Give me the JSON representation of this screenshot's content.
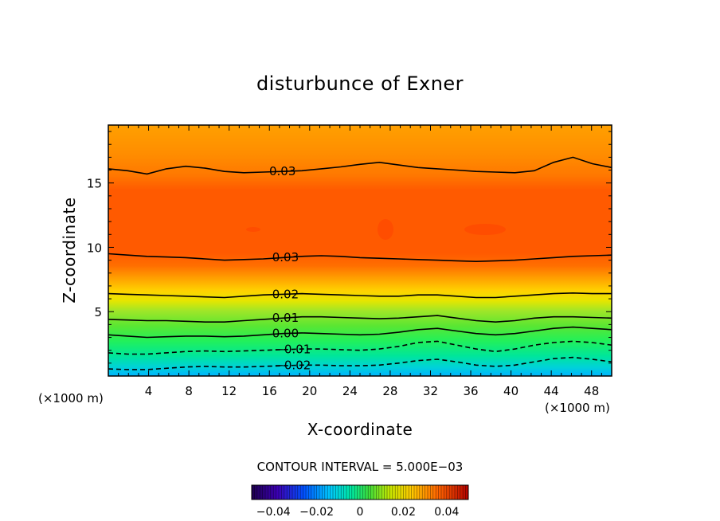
{
  "chart_data": {
    "type": "contour",
    "title": "disturbunce of Exner",
    "xlabel": "X-coordinate",
    "ylabel": "Z-coordinate",
    "x_unit_label": "(×1000 m)",
    "y_unit_label": "(×1000 m)",
    "xlim": [
      0,
      50
    ],
    "ylim": [
      0,
      19.5
    ],
    "x_ticks": [
      4,
      8,
      12,
      16,
      20,
      24,
      28,
      32,
      36,
      40,
      44,
      48
    ],
    "y_ticks": [
      5,
      10,
      15
    ],
    "x_tick_labels": [
      "4",
      "8",
      "12",
      "16",
      "20",
      "24",
      "28",
      "32",
      "36",
      "40",
      "44",
      "48"
    ],
    "y_tick_labels": [
      "5",
      "10",
      "15"
    ],
    "contour_interval_text": "CONTOUR INTERVAL = 5.000E−03",
    "contour_interval": 0.005,
    "colorbar": {
      "range": [
        -0.05,
        0.05
      ],
      "ticks": [
        -0.04,
        -0.02,
        0,
        0.02,
        0.04
      ],
      "tick_labels": [
        "−0.04",
        "−0.02",
        "0",
        "0.02",
        "0.04"
      ]
    },
    "contour_lines": [
      {
        "level": 0.03,
        "label": "0.03",
        "label_x": 17.3,
        "z": [
          16.1,
          15.95,
          15.7,
          16.1,
          16.3,
          16.15,
          15.9,
          15.8,
          15.85,
          15.9,
          15.95,
          16.1,
          16.25,
          16.45,
          16.6,
          16.4,
          16.2,
          16.1,
          16.0,
          15.9,
          15.85,
          15.8,
          15.95,
          16.6,
          17.0,
          16.5,
          16.2
        ]
      },
      {
        "level": 0.03,
        "label": "0.03",
        "label_x": 17.6,
        "z": [
          9.5,
          9.4,
          9.3,
          9.25,
          9.2,
          9.1,
          9.0,
          9.05,
          9.1,
          9.2,
          9.3,
          9.35,
          9.3,
          9.2,
          9.15,
          9.1,
          9.05,
          9.0,
          8.95,
          8.9,
          8.95,
          9.0,
          9.1,
          9.2,
          9.3,
          9.35,
          9.4
        ]
      },
      {
        "level": 0.02,
        "label": "0.02",
        "label_x": 17.6,
        "z": [
          6.4,
          6.35,
          6.3,
          6.25,
          6.2,
          6.15,
          6.1,
          6.2,
          6.3,
          6.35,
          6.4,
          6.35,
          6.3,
          6.25,
          6.2,
          6.2,
          6.3,
          6.3,
          6.2,
          6.1,
          6.1,
          6.2,
          6.3,
          6.4,
          6.45,
          6.4,
          6.4
        ]
      },
      {
        "level": 0.01,
        "label": "0.01",
        "label_x": 17.6,
        "z": [
          4.4,
          4.35,
          4.3,
          4.3,
          4.25,
          4.2,
          4.2,
          4.3,
          4.4,
          4.5,
          4.6,
          4.6,
          4.55,
          4.5,
          4.45,
          4.5,
          4.6,
          4.7,
          4.5,
          4.3,
          4.2,
          4.3,
          4.5,
          4.6,
          4.6,
          4.55,
          4.5
        ]
      },
      {
        "level": 0.0,
        "label": "0.00",
        "label_x": 17.6,
        "z": [
          3.2,
          3.1,
          3.0,
          3.05,
          3.1,
          3.1,
          3.05,
          3.1,
          3.2,
          3.3,
          3.35,
          3.3,
          3.25,
          3.2,
          3.25,
          3.4,
          3.6,
          3.7,
          3.5,
          3.3,
          3.2,
          3.3,
          3.5,
          3.7,
          3.8,
          3.7,
          3.6
        ]
      },
      {
        "level": -0.01,
        "label": "−0.01",
        "label_x": 18.3,
        "z": [
          1.8,
          1.7,
          1.7,
          1.8,
          1.9,
          1.95,
          1.9,
          1.95,
          2.0,
          2.05,
          2.1,
          2.1,
          2.05,
          2.0,
          2.1,
          2.3,
          2.6,
          2.7,
          2.4,
          2.1,
          1.9,
          2.1,
          2.4,
          2.6,
          2.7,
          2.6,
          2.4
        ]
      },
      {
        "level": -0.02,
        "label": "−0.02",
        "label_x": 18.3,
        "z": [
          0.55,
          0.5,
          0.5,
          0.6,
          0.7,
          0.75,
          0.7,
          0.7,
          0.75,
          0.8,
          0.85,
          0.85,
          0.8,
          0.8,
          0.85,
          1.0,
          1.2,
          1.3,
          1.1,
          0.85,
          0.75,
          0.85,
          1.1,
          1.35,
          1.45,
          1.3,
          1.1
        ]
      }
    ]
  }
}
